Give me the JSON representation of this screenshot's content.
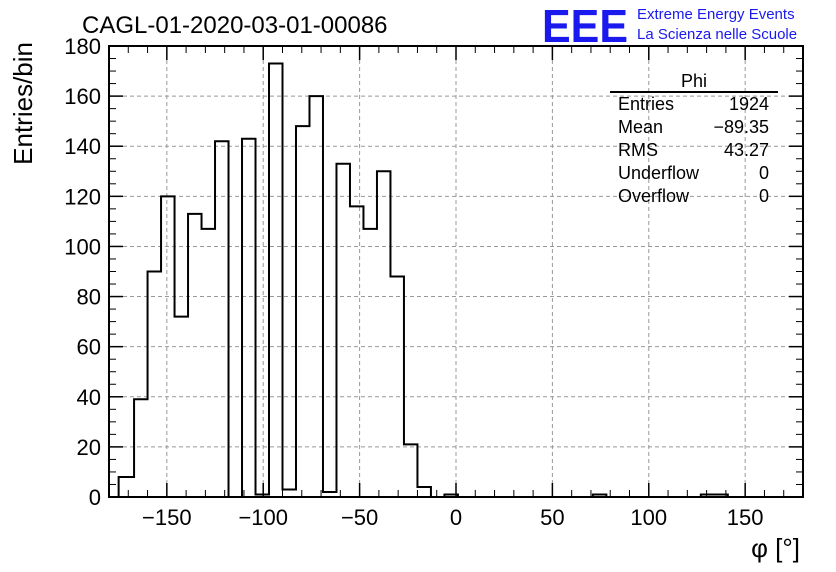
{
  "chart_data": {
    "type": "bar",
    "title": "CAGL-01-2020-03-01-00086",
    "xlabel": "φ [°]",
    "ylabel": "Entries/bin",
    "xlim": [
      -180,
      180
    ],
    "ylim": [
      0,
      180
    ],
    "x_ticks": [
      -150,
      -100,
      -50,
      0,
      50,
      100,
      150
    ],
    "y_ticks": [
      0,
      20,
      40,
      60,
      80,
      100,
      120,
      140,
      160,
      180
    ],
    "grid": true,
    "bin_edges": [
      -175,
      -167,
      -160,
      -153,
      -146,
      -139,
      -132,
      -125,
      -118,
      -111,
      -104,
      -97,
      -90,
      -83,
      -76,
      -69,
      -62,
      -55,
      -48,
      -41,
      -34,
      -27,
      -20,
      -13,
      -6,
      1,
      8,
      15,
      22,
      29,
      36,
      43,
      50,
      57,
      64,
      71,
      78,
      85,
      92,
      99,
      106,
      113,
      120,
      127,
      134,
      141,
      148,
      155,
      162,
      169
    ],
    "values": [
      8,
      39,
      90,
      120,
      72,
      113,
      107,
      142,
      0,
      143,
      1,
      173,
      3,
      148,
      160,
      2,
      133,
      116,
      107,
      130,
      88,
      21,
      4,
      0,
      1,
      0,
      0,
      0,
      0,
      0,
      0,
      0,
      0,
      0,
      0,
      1,
      0,
      0,
      0,
      0,
      0,
      0,
      0,
      1,
      1,
      0,
      0,
      0,
      0
    ],
    "stats_box": {
      "name": "Phi",
      "rows": [
        {
          "label": "Entries",
          "value": "1924"
        },
        {
          "label": "Mean",
          "value": "−89.35"
        },
        {
          "label": "RMS",
          "value": "43.27"
        },
        {
          "label": "Underflow",
          "value": "0"
        },
        {
          "label": "Overflow",
          "value": "0"
        }
      ]
    },
    "colors": {
      "line": "#000000",
      "grid": "#999999",
      "logo": "#1a1aee"
    }
  },
  "logo": {
    "mark": "EEE",
    "line1": "Extreme Energy Events",
    "line2": "La Scienza nelle Scuole"
  }
}
